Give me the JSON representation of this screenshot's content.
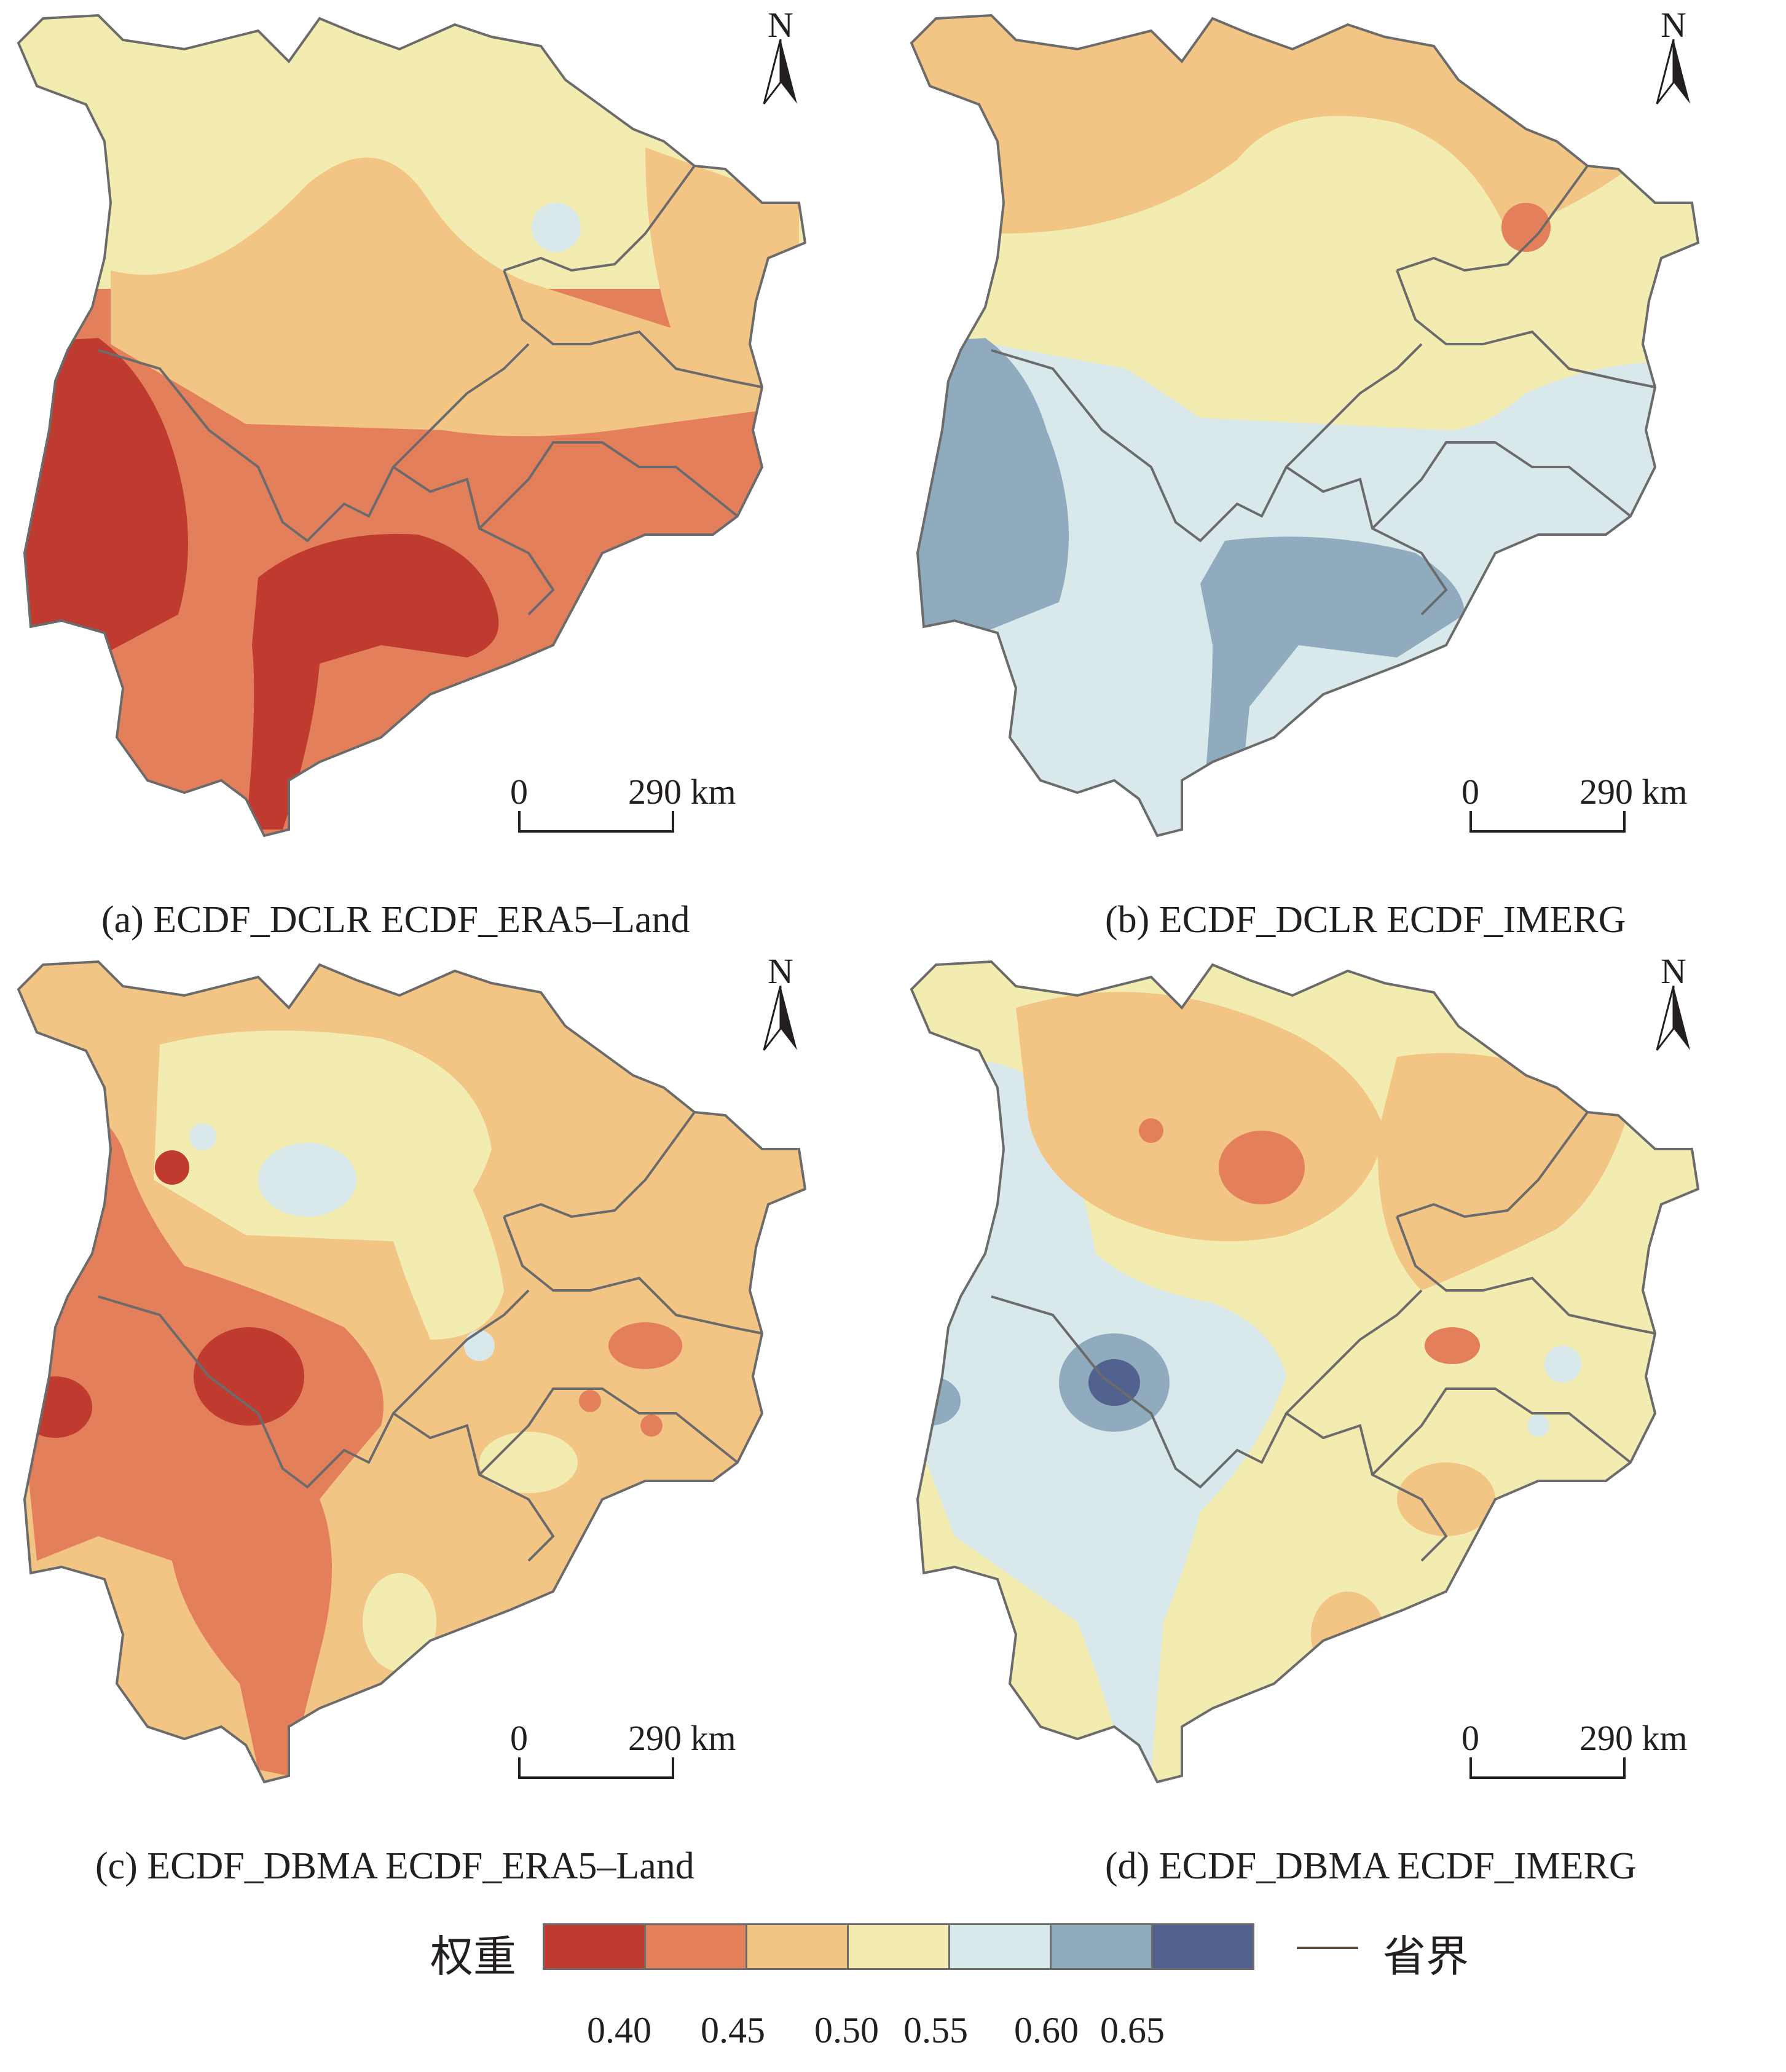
{
  "panels": [
    {
      "caption": "(a) ECDF_DCLR ECDF_ERA5–Land",
      "north_label": "N",
      "scale": {
        "start": "0",
        "end": "290 km"
      }
    },
    {
      "caption": "(b) ECDF_DCLR ECDF_IMERG",
      "north_label": "N",
      "scale": {
        "start": "0",
        "end": "290 km"
      }
    },
    {
      "caption": "(c) ECDF_DBMA ECDF_ERA5–Land",
      "north_label": "N",
      "scale": {
        "start": "0",
        "end": "290 km"
      }
    },
    {
      "caption": "(d) ECDF_DBMA ECDF_IMERG",
      "north_label": "N",
      "scale": {
        "start": "0",
        "end": "290 km"
      }
    }
  ],
  "legend": {
    "title": "权重",
    "classes": [
      {
        "color": "#bf3a2f"
      },
      {
        "color": "#e47f5c"
      },
      {
        "color": "#f3c585"
      },
      {
        "color": "#f3ecb1"
      },
      {
        "color": "#d9e8eb"
      },
      {
        "color": "#8fabbd"
      },
      {
        "color": "#51628f"
      }
    ],
    "ticks": [
      "0.40",
      "0.45",
      "0.50",
      "0.55",
      "0.60",
      "0.65"
    ],
    "boundary_label": "省界",
    "boundary_color": "#5a4a42"
  }
}
